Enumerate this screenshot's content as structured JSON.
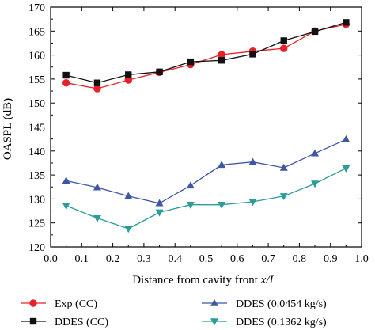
{
  "chart_data": {
    "type": "line",
    "title": "",
    "xlabel": "Distance from cavity front x/L",
    "xlabel_plain": "Distance from cavity front ",
    "xlabel_italic": "x/L",
    "ylabel": "OASPL (dB)",
    "xlim": [
      0.0,
      1.0
    ],
    "ylim": [
      120,
      170
    ],
    "xticks": [
      "0.0",
      "0.1",
      "0.2",
      "0.3",
      "0.4",
      "0.5",
      "0.6",
      "0.7",
      "0.8",
      "0.9",
      "1.0"
    ],
    "yticks": [
      "120",
      "125",
      "130",
      "135",
      "140",
      "145",
      "150",
      "155",
      "160",
      "165",
      "170"
    ],
    "grid": false,
    "legend_position": "bottom",
    "x": [
      0.05,
      0.15,
      0.25,
      0.35,
      0.45,
      0.55,
      0.65,
      0.75,
      0.85,
      0.95
    ],
    "series": [
      {
        "name": "Exp (CC)",
        "color": "#e8202a",
        "marker": "circle",
        "values": [
          154.2,
          153.0,
          154.8,
          156.4,
          158.0,
          160.1,
          160.8,
          161.4,
          165.0,
          166.4
        ]
      },
      {
        "name": "DDES (CC)",
        "color": "#111111",
        "marker": "square",
        "values": [
          155.8,
          154.2,
          155.9,
          156.5,
          158.6,
          158.9,
          160.2,
          163.0,
          164.9,
          166.8
        ]
      },
      {
        "name": "DDES (0.0454 kg/s)",
        "color": "#3d56a6",
        "marker": "triangle-up",
        "values": [
          133.8,
          132.4,
          130.6,
          129.1,
          132.8,
          137.1,
          137.7,
          136.5,
          139.5,
          142.4
        ]
      },
      {
        "name": "DDES (0.1362 kg/s)",
        "color": "#2a9d9a",
        "marker": "triangle-down",
        "values": [
          128.6,
          126.0,
          123.8,
          127.2,
          128.8,
          128.8,
          129.4,
          130.6,
          133.2,
          136.4
        ]
      }
    ]
  }
}
